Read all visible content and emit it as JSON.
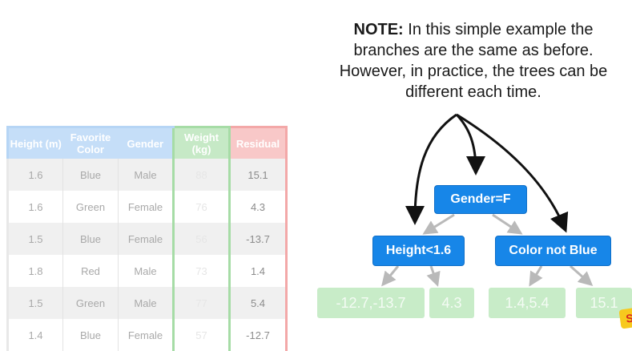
{
  "note": {
    "label": "NOTE:",
    "text": " In this simple example the branches are the same as before. However, in practice, the trees can be different each time."
  },
  "table": {
    "headers": {
      "height": "Height (m)",
      "color": "Favorite Color",
      "gender": "Gender",
      "weight": "Weight (kg)",
      "residual": "Residual"
    },
    "rows": [
      {
        "height": "1.6",
        "color": "Blue",
        "gender": "Male",
        "weight": "88",
        "residual": "15.1"
      },
      {
        "height": "1.6",
        "color": "Green",
        "gender": "Female",
        "weight": "76",
        "residual": "4.3"
      },
      {
        "height": "1.5",
        "color": "Blue",
        "gender": "Female",
        "weight": "56",
        "residual": "-13.7"
      },
      {
        "height": "1.8",
        "color": "Red",
        "gender": "Male",
        "weight": "73",
        "residual": "1.4"
      },
      {
        "height": "1.5",
        "color": "Green",
        "gender": "Male",
        "weight": "77",
        "residual": "5.4"
      },
      {
        "height": "1.4",
        "color": "Blue",
        "gender": "Female",
        "weight": "57",
        "residual": "-12.7"
      }
    ]
  },
  "tree": {
    "root": "Gender=F",
    "left": "Height<1.6",
    "right": "Color not Blue",
    "leaves": [
      "-12.7,-13.7",
      "4.3",
      "1.4,5.4",
      "15.1"
    ]
  },
  "colors": {
    "node": "#1786e8",
    "leaf": "#c8ecc8",
    "header_blue": "#c5def8",
    "header_green": "#c6e9c6",
    "header_red": "#f8c8c8"
  },
  "logo": {
    "text": "S"
  }
}
